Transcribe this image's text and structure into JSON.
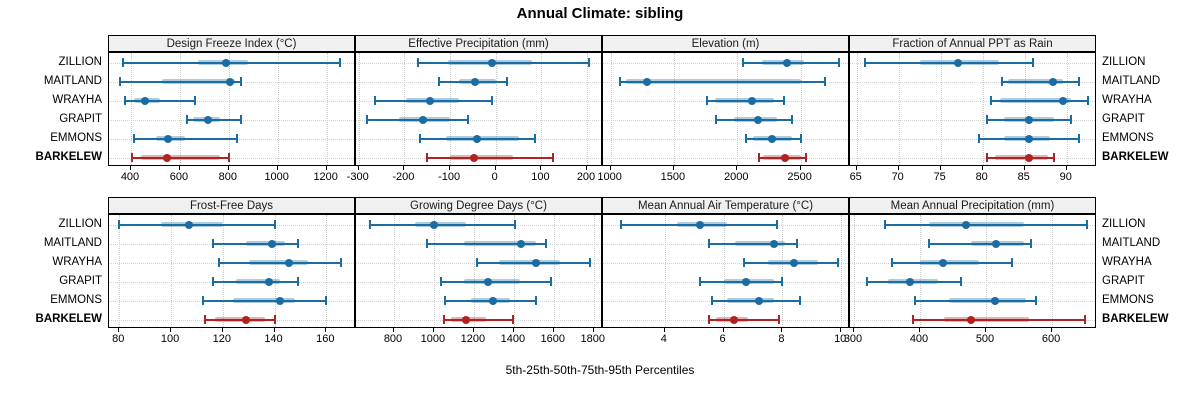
{
  "title": "Annual Climate: sibling",
  "footer_caption": "5th-25th-50th-75th-95th Percentiles",
  "sites": [
    "ZILLION",
    "MAITLAND",
    "WRAYHA",
    "GRAPIT",
    "EMMONS",
    "BARKELEW"
  ],
  "highlight_site": "BARKELEW",
  "percentile_labels": [
    "5th",
    "25th",
    "50th",
    "75th",
    "95th"
  ],
  "colors": {
    "series_blue": "#1b6ca3",
    "highlight_red": "#b02323",
    "band_alpha": 0.35,
    "grid": "#c9c9c9",
    "header_bg": "#f0f0f0",
    "border": "#000000"
  },
  "chart_data": {
    "type": "dot-whisker-percentiles",
    "title": "Annual Climate: sibling",
    "xlabel": "5th-25th-50th-75th-95th Percentiles",
    "grid": "dotted",
    "layout": "2 rows x 4 columns, site labels on both sides",
    "panels": [
      {
        "title": "Design Freeze Index (°C)",
        "domain": [
          310,
          1320
        ],
        "ticks": [
          400,
          600,
          800,
          1000,
          1200
        ],
        "series": {
          "ZILLION": [
            365,
            675,
            790,
            880,
            1255
          ],
          "MAITLAND": [
            355,
            525,
            805,
            825,
            850
          ],
          "WRAYHA": [
            375,
            410,
            455,
            520,
            660
          ],
          "GRAPIT": [
            630,
            655,
            715,
            765,
            850
          ],
          "EMMONS": [
            410,
            500,
            550,
            620,
            835
          ],
          "BARKELEW": [
            405,
            440,
            545,
            765,
            800
          ]
        }
      },
      {
        "title": "Effective Precipitation (mm)",
        "domain": [
          -306,
          235
        ],
        "ticks": [
          -300,
          -200,
          -100,
          0,
          100,
          200
        ],
        "series": {
          "ZILLION": [
            -170,
            -105,
            -8,
            80,
            205
          ],
          "MAITLAND": [
            -125,
            -80,
            -45,
            0,
            25
          ],
          "WRAYHA": [
            -265,
            -197,
            -145,
            -80,
            -8
          ],
          "GRAPIT": [
            -282,
            -213,
            -160,
            -100,
            -60
          ],
          "EMMONS": [
            -165,
            -110,
            -40,
            50,
            85
          ],
          "BARKELEW": [
            -150,
            -100,
            -48,
            38,
            125
          ]
        }
      },
      {
        "title": "Elevation (m)",
        "domain": [
          940,
          2890
        ],
        "ticks": [
          1000,
          1500,
          2000,
          2500
        ],
        "series": {
          "ZILLION": [
            2045,
            2195,
            2390,
            2530,
            2800
          ],
          "MAITLAND": [
            1075,
            1120,
            1285,
            2500,
            2695
          ],
          "WRAYHA": [
            1760,
            1820,
            2115,
            2290,
            2370
          ],
          "GRAPIT": [
            1830,
            1970,
            2160,
            2310,
            2435
          ],
          "EMMONS": [
            2070,
            2120,
            2270,
            2435,
            2500
          ],
          "BARKELEW": [
            2170,
            2205,
            2380,
            2500,
            2545
          ]
        }
      },
      {
        "title": "Fraction of Annual PPT as Rain",
        "domain": [
          64.2,
          93.6
        ],
        "ticks": [
          65,
          70,
          75,
          80,
          85,
          90
        ],
        "series": {
          "ZILLION": [
            66,
            72.5,
            77,
            82,
            86
          ],
          "MAITLAND": [
            82.3,
            83,
            88.4,
            89.6,
            91.5
          ],
          "WRAYHA": [
            81,
            82,
            89.5,
            90.5,
            92.5
          ],
          "GRAPIT": [
            80.5,
            82.5,
            85.5,
            88.5,
            90.5
          ],
          "EMMONS": [
            79.5,
            82.5,
            85.5,
            88,
            91.5
          ],
          "BARKELEW": [
            80.5,
            81.5,
            85.5,
            87.8,
            88.5
          ]
        }
      },
      {
        "title": "Frost-Free Days",
        "domain": [
          76,
          171.5
        ],
        "ticks": [
          80,
          100,
          120,
          140,
          160
        ],
        "series": {
          "ZILLION": [
            80,
            96,
            107,
            120,
            140
          ],
          "MAITLAND": [
            116,
            129,
            139,
            144,
            149
          ],
          "WRAYHA": [
            118.5,
            130,
            145.5,
            153,
            165.5
          ],
          "GRAPIT": [
            116,
            125,
            138,
            142,
            149
          ],
          "EMMONS": [
            112.5,
            124,
            142,
            148,
            160
          ],
          "BARKELEW": [
            113,
            117,
            129,
            136.5,
            140
          ]
        }
      },
      {
        "title": "Growing Degree Days (°C)",
        "domain": [
          610,
          1846
        ],
        "ticks": [
          800,
          1000,
          1200,
          1400,
          1600,
          1800
        ],
        "series": {
          "ZILLION": [
            680,
            905,
            1000,
            1160,
            1405
          ],
          "MAITLAND": [
            965,
            1150,
            1435,
            1510,
            1560
          ],
          "WRAYHA": [
            1215,
            1325,
            1510,
            1630,
            1780
          ],
          "GRAPIT": [
            1035,
            1150,
            1270,
            1430,
            1585
          ],
          "EMMONS": [
            1055,
            1185,
            1295,
            1380,
            1510
          ],
          "BARKELEW": [
            1050,
            1085,
            1160,
            1260,
            1395
          ]
        }
      },
      {
        "title": "Mean Annual Air Temperature (°C)",
        "domain": [
          1.9,
          10.3
        ],
        "ticks": [
          4,
          6,
          8,
          10
        ],
        "series": {
          "ZILLION": [
            2.5,
            4.4,
            5.2,
            6.1,
            7.8
          ],
          "MAITLAND": [
            5.5,
            6.4,
            7.7,
            8.1,
            8.5
          ],
          "WRAYHA": [
            6.7,
            7.5,
            8.4,
            9.2,
            9.9
          ],
          "GRAPIT": [
            5.2,
            6.0,
            6.75,
            7.7,
            8.0
          ],
          "EMMONS": [
            5.6,
            6.1,
            7.2,
            7.7,
            8.6
          ],
          "BARKELEW": [
            5.5,
            5.75,
            6.35,
            6.85,
            7.9
          ]
        }
      },
      {
        "title": "Mean Annual Precipitation (mm)",
        "domain": [
          294,
          668
        ],
        "ticks": [
          300,
          400,
          500,
          600
        ],
        "series": {
          "ZILLION": [
            347,
            414,
            469,
            558,
            653
          ],
          "MAITLAND": [
            413,
            477,
            515,
            558,
            568
          ],
          "WRAYHA": [
            357,
            400,
            435,
            490,
            539
          ],
          "GRAPIT": [
            320,
            352,
            385,
            428,
            462
          ],
          "EMMONS": [
            392,
            444,
            514,
            560,
            575
          ],
          "BARKELEW": [
            390,
            437,
            477,
            565,
            650
          ]
        }
      }
    ]
  }
}
